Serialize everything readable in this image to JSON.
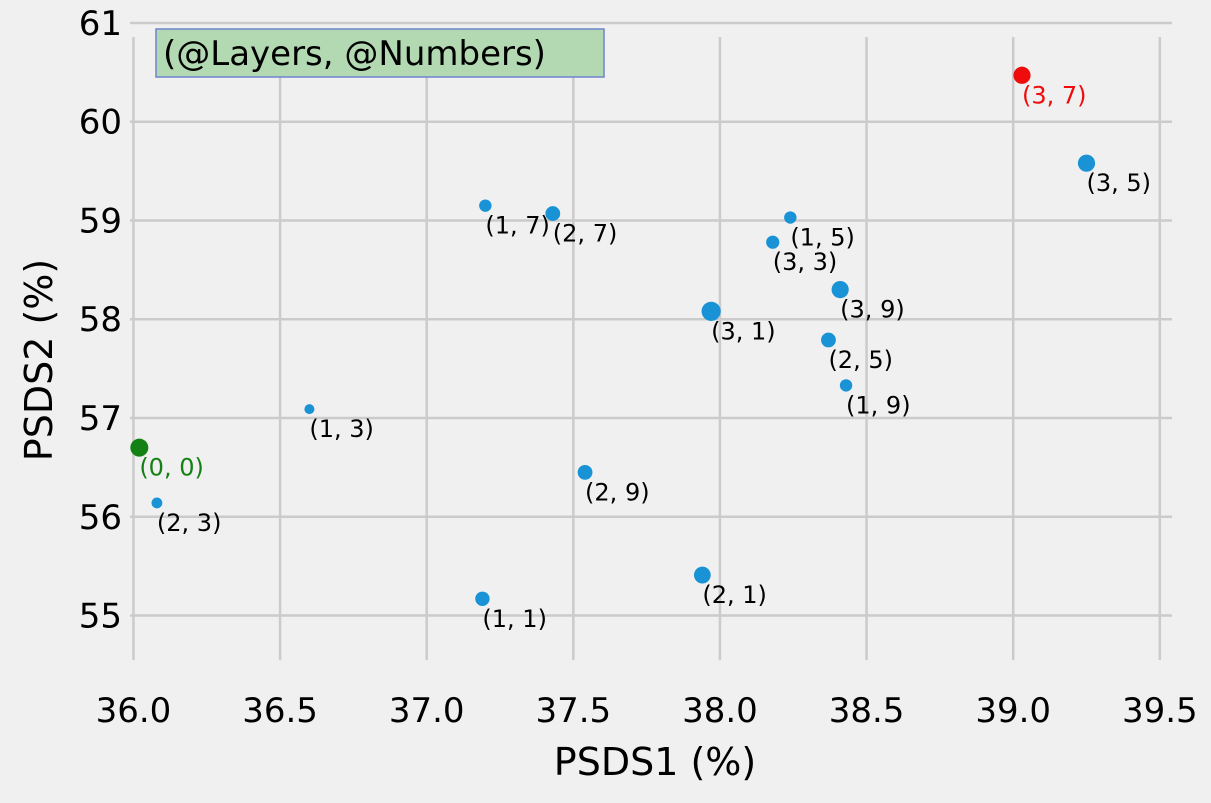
{
  "chart_data": {
    "type": "scatter",
    "title": "",
    "xlabel": "PSDS1 (%)",
    "ylabel": "PSDS2 (%)",
    "legend_text": "(@Layers, @Numbers)",
    "legend_placement": "top-left",
    "xlim": [
      35.92,
      39.62
    ],
    "ylim": [
      54.55,
      61.05
    ],
    "grid": true,
    "x_ticks": [
      "36.0",
      "36.5",
      "37.0",
      "37.5",
      "38.0",
      "38.5",
      "39.0",
      "39.5"
    ],
    "x_tick_values": [
      36.0,
      36.5,
      37.0,
      37.5,
      38.0,
      38.5,
      39.0,
      39.5
    ],
    "y_ticks": [
      "55",
      "56",
      "57",
      "58",
      "59",
      "60",
      "61"
    ],
    "y_tick_values": [
      55,
      56,
      57,
      58,
      59,
      60,
      61
    ],
    "colors": {
      "default": "#1a93d6",
      "baseline": "#138113",
      "best": "#ee0c0c",
      "background": "#f0f0f0",
      "legend_bg": "#b2d9b2",
      "legend_border": "#6f84cc"
    },
    "points": [
      {
        "label": "(0, 0)",
        "x": 36.02,
        "y": 56.7,
        "layers": 0,
        "numbers": 0,
        "color": "#138113",
        "highlight": "baseline"
      },
      {
        "label": "(1, 1)",
        "x": 37.19,
        "y": 55.17,
        "layers": 1,
        "numbers": 1,
        "color": "#1a93d6"
      },
      {
        "label": "(1, 3)",
        "x": 36.6,
        "y": 57.09,
        "layers": 1,
        "numbers": 3,
        "color": "#1a93d6"
      },
      {
        "label": "(1, 5)",
        "x": 38.24,
        "y": 59.03,
        "layers": 1,
        "numbers": 5,
        "color": "#1a93d6"
      },
      {
        "label": "(1, 7)",
        "x": 37.2,
        "y": 59.15,
        "layers": 1,
        "numbers": 7,
        "color": "#1a93d6"
      },
      {
        "label": "(1, 9)",
        "x": 38.43,
        "y": 57.33,
        "layers": 1,
        "numbers": 9,
        "color": "#1a93d6"
      },
      {
        "label": "(2, 1)",
        "x": 37.94,
        "y": 55.41,
        "layers": 2,
        "numbers": 1,
        "color": "#1a93d6"
      },
      {
        "label": "(2, 3)",
        "x": 36.08,
        "y": 56.14,
        "layers": 2,
        "numbers": 3,
        "color": "#1a93d6"
      },
      {
        "label": "(2, 5)",
        "x": 38.37,
        "y": 57.79,
        "layers": 2,
        "numbers": 5,
        "color": "#1a93d6"
      },
      {
        "label": "(2, 7)",
        "x": 37.43,
        "y": 59.07,
        "layers": 2,
        "numbers": 7,
        "color": "#1a93d6"
      },
      {
        "label": "(2, 9)",
        "x": 37.54,
        "y": 56.45,
        "layers": 2,
        "numbers": 9,
        "color": "#1a93d6"
      },
      {
        "label": "(3, 1)",
        "x": 37.97,
        "y": 58.08,
        "layers": 3,
        "numbers": 1,
        "color": "#1a93d6"
      },
      {
        "label": "(3, 3)",
        "x": 38.18,
        "y": 58.78,
        "layers": 3,
        "numbers": 3,
        "color": "#1a93d6"
      },
      {
        "label": "(3, 5)",
        "x": 39.25,
        "y": 59.58,
        "layers": 3,
        "numbers": 5,
        "color": "#1a93d6"
      },
      {
        "label": "(3, 7)",
        "x": 39.03,
        "y": 60.47,
        "layers": 3,
        "numbers": 7,
        "color": "#ee0c0c",
        "highlight": "best"
      },
      {
        "label": "(3, 9)",
        "x": 38.41,
        "y": 58.3,
        "layers": 3,
        "numbers": 9,
        "color": "#1a93d6"
      }
    ]
  }
}
